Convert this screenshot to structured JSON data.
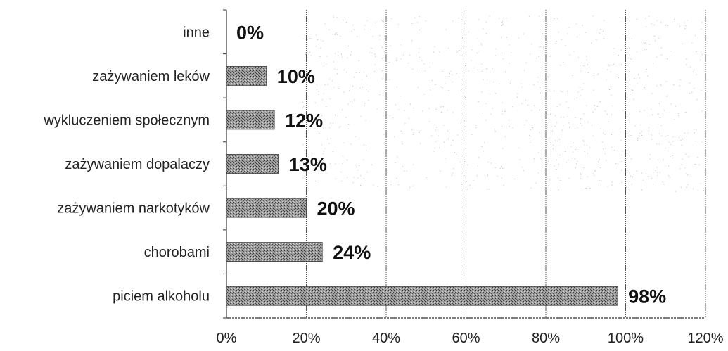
{
  "chart_data": {
    "type": "bar",
    "orientation": "horizontal",
    "categories": [
      "inne",
      "zażywaniem leków",
      "wykluczeniem społecznym",
      "zażywaniem dopalaczy",
      "zażywaniem narkotyków",
      "chorobami",
      "piciem alkoholu"
    ],
    "values": [
      0,
      10,
      12,
      13,
      20,
      24,
      98
    ],
    "value_labels": [
      "0%",
      "10%",
      "12%",
      "13%",
      "20%",
      "24%",
      "98%"
    ],
    "xlim": [
      0,
      120
    ],
    "x_ticks": [
      0,
      20,
      40,
      60,
      80,
      100,
      120
    ],
    "x_tick_labels": [
      "0%",
      "20%",
      "40%",
      "60%",
      "80%",
      "100%",
      "120%"
    ],
    "grid": true,
    "legend": false,
    "title": "",
    "xlabel": "",
    "ylabel": "",
    "colors": {
      "bar": "#8a8a8a",
      "bar_dark": "#4d4d4d",
      "grid": "#555555",
      "axis": "#333333"
    }
  }
}
